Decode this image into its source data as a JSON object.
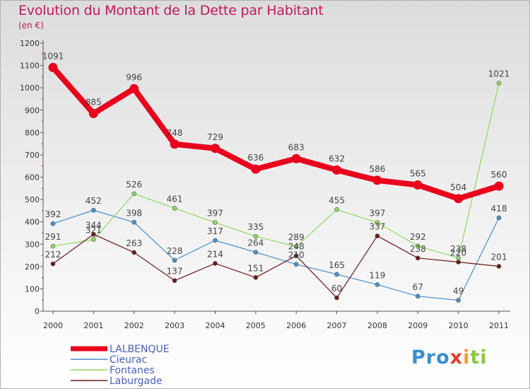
{
  "chart_data": {
    "type": "line",
    "title": "Evolution du Montant de la Dette par Habitant",
    "subtitle": "(en €)",
    "xlabel": "",
    "ylabel": "",
    "ylim": [
      0,
      1200
    ],
    "yticks": [
      0,
      100,
      200,
      300,
      400,
      500,
      600,
      700,
      800,
      900,
      1000,
      1100,
      1200
    ],
    "categories": [
      "2000",
      "2001",
      "2002",
      "2003",
      "2004",
      "2005",
      "2006",
      "2007",
      "2008",
      "2009",
      "2010",
      "2011"
    ],
    "grid": false,
    "legend_position": "bottom-left",
    "series": [
      {
        "name": "LALBENQUE",
        "color": "#e8001c",
        "emphasis": true,
        "values": [
          1091,
          885,
          996,
          748,
          729,
          636,
          683,
          632,
          586,
          565,
          504,
          560
        ]
      },
      {
        "name": "Cieurac",
        "color": "#4a90c8",
        "values": [
          392,
          452,
          398,
          228,
          317,
          264,
          210,
          165,
          119,
          67,
          49,
          418
        ]
      },
      {
        "name": "Fontanes",
        "color": "#90d860",
        "values": [
          291,
          321,
          526,
          461,
          397,
          335,
          289,
          455,
          397,
          292,
          238,
          1021
        ]
      },
      {
        "name": "Laburgade",
        "color": "#6b1a1a",
        "values": [
          212,
          344,
          263,
          137,
          214,
          151,
          248,
          60,
          337,
          238,
          220,
          201
        ]
      }
    ]
  },
  "brand": {
    "p1": "Pro",
    "p2": "x",
    "p3": "i",
    "p4": "ti"
  }
}
